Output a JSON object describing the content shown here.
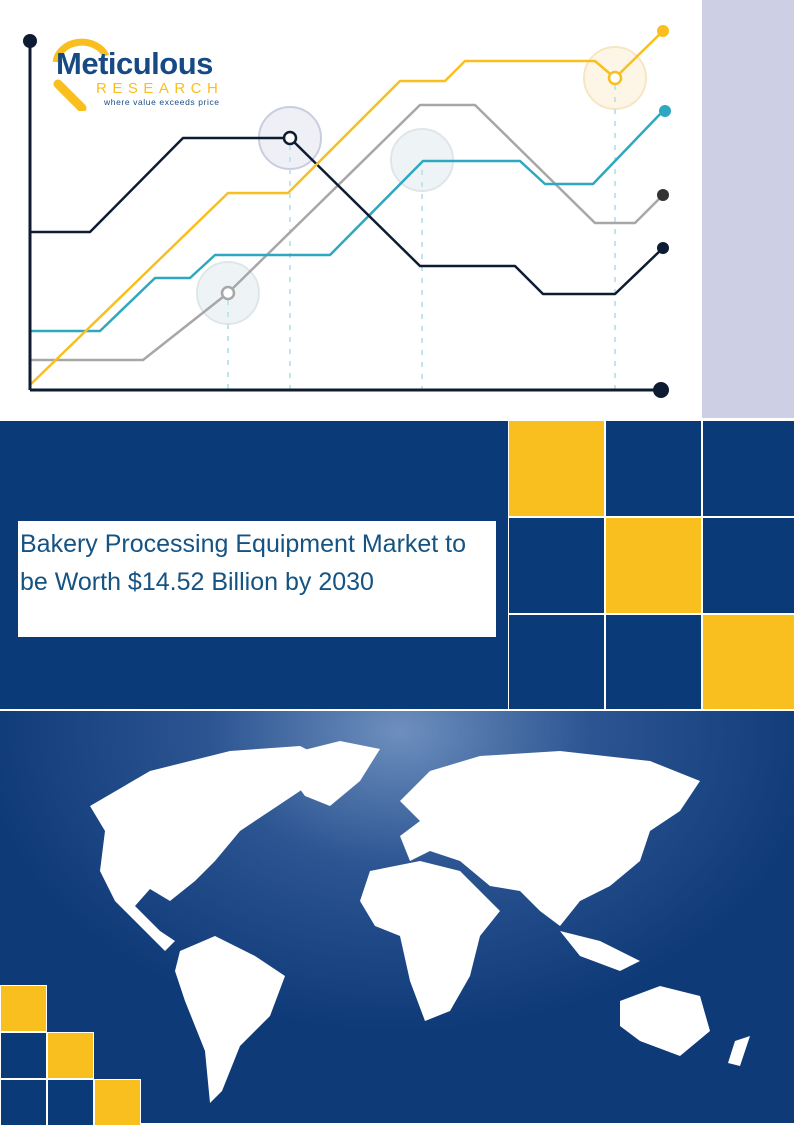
{
  "logo": {
    "name": "Meticulous",
    "sub": "RESEARCH",
    "tagline": "where value exceeds price"
  },
  "title": "Bakery Processing Equipment Market to be Worth $14.52 Billion by 2030",
  "colors": {
    "navy": "#0b3a78",
    "yellow": "#f8bf1f",
    "teal": "#2ea8c0",
    "gray": "#a7a7a7",
    "dark": "#0d1b33",
    "lavender": "#cdd0e4"
  }
}
